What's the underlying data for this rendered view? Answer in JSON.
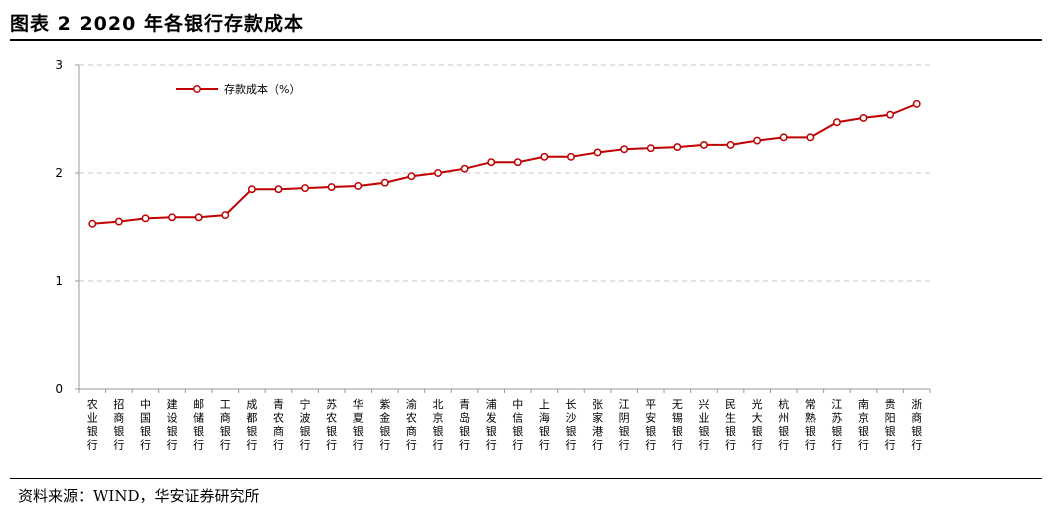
{
  "header": {
    "title": "图表 2 2020 年各银行存款成本"
  },
  "footer": {
    "source": "资料来源：WIND，华安证券研究所"
  },
  "colors": {
    "series": "#c00000",
    "grid": "#c8c8c8",
    "axis": "#999999"
  },
  "chart_data": {
    "type": "line",
    "title": "",
    "xlabel": "",
    "ylabel": "",
    "ylim": [
      0,
      3
    ],
    "yticks": [
      0,
      1,
      2,
      3
    ],
    "grid": true,
    "legend_position": "top-left",
    "categories": [
      "农业银行",
      "招商银行",
      "中国银行",
      "建设银行",
      "邮储银行",
      "工商银行",
      "成都银行",
      "青农商行",
      "宁波银行",
      "苏农银行",
      "华夏银行",
      "紫金银行",
      "渝农商行",
      "北京银行",
      "青岛银行",
      "浦发银行",
      "中信银行",
      "上海银行",
      "长沙银行",
      "张家港行",
      "江阴银行",
      "平安银行",
      "无锡银行",
      "兴业银行",
      "民生银行",
      "光大银行",
      "杭州银行",
      "常熟银行",
      "江苏银行",
      "南京银行",
      "贵阳银行",
      "浙商银行"
    ],
    "series": [
      {
        "name": "存款成本（%）",
        "values": [
          1.53,
          1.55,
          1.58,
          1.59,
          1.59,
          1.61,
          1.85,
          1.85,
          1.86,
          1.87,
          1.88,
          1.91,
          1.97,
          2.0,
          2.04,
          2.1,
          2.1,
          2.15,
          2.15,
          2.19,
          2.22,
          2.23,
          2.24,
          2.26,
          2.26,
          2.3,
          2.33,
          2.33,
          2.47,
          2.51,
          2.54,
          2.64
        ]
      }
    ]
  }
}
